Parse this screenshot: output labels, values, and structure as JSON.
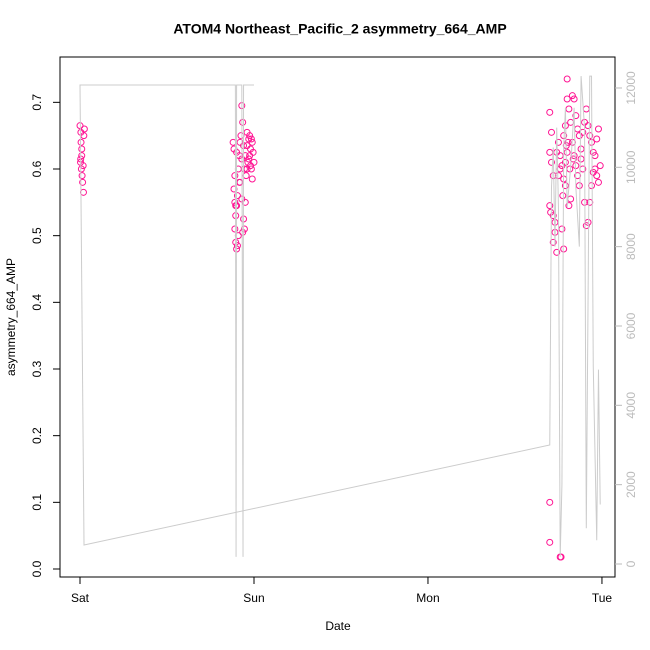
{
  "chart_data": {
    "type": "scatter",
    "title": "ATOM4 Northeast_Pacific_2 asymmetry_664_AMP",
    "x_label": "Date",
    "y_label": "asymmetry_664_AMP",
    "xlim": [
      -0.115,
      3.075
    ],
    "xticks": [
      {
        "value": 0,
        "label": "Sat"
      },
      {
        "value": 1,
        "label": "Sun"
      },
      {
        "value": 2,
        "label": "Mon"
      },
      {
        "value": 3,
        "label": "Tue"
      }
    ],
    "ylim": [
      -0.012,
      0.768
    ],
    "yticks": [
      {
        "value": 0,
        "label": "0.0"
      },
      0.1,
      0.2,
      0.3,
      0.4,
      0.5,
      0.6,
      0.7
    ],
    "y2lim": [
      -328,
      12781
    ],
    "y2ticks": [
      0,
      2000,
      4000,
      6000,
      8000,
      10000,
      12000
    ],
    "y2_color": "#bbbbbb",
    "series": [
      {
        "type": "scatter",
        "color": "#ff1493",
        "x": [
          0,
          0.005,
          0.01,
          0.003,
          0.008,
          0.012,
          0.015,
          0.02,
          0.018,
          0.025,
          0.022,
          0.006,
          0.01,
          0.004,
          0.88,
          0.885,
          0.89,
          0.885,
          0.89,
          0.895,
          0.89,
          0.895,
          0.9,
          0.905,
          0.91,
          0.9,
          0.905,
          0.91,
          0.915,
          0.92,
          0.925,
          0.93,
          0.935,
          0.92,
          0.93,
          0.94,
          0.945,
          0.95,
          0.955,
          0.96,
          0.965,
          0.97,
          0.975,
          0.98,
          0.985,
          0.99,
          0.995,
          1.0,
          0.96,
          0.97,
          0.98,
          0.99,
          0.94,
          0.95,
          0.96,
          0.93,
          0.915,
          0.945,
          0.975,
          0.985,
          0.9,
          0.935,
          0.895,
          2.7,
          2.7,
          2.76,
          2.765,
          2.7,
          2.71,
          2.7,
          2.71,
          2.72,
          2.7,
          2.705,
          2.72,
          2.73,
          2.72,
          2.74,
          2.73,
          2.75,
          2.76,
          2.74,
          2.75,
          2.76,
          2.77,
          2.78,
          2.79,
          2.8,
          2.8,
          2.81,
          2.79,
          2.78,
          2.82,
          2.83,
          2.84,
          2.85,
          2.83,
          2.84,
          2.85,
          2.86,
          2.87,
          2.82,
          2.81,
          2.78,
          2.77,
          2.88,
          2.89,
          2.9,
          2.91,
          2.92,
          2.93,
          2.94,
          2.95,
          2.96,
          2.97,
          2.98,
          2.99,
          2.98,
          2.97,
          2.96,
          2.95,
          2.94,
          2.93,
          2.92,
          2.91,
          2.9,
          2.89,
          2.88,
          2.87,
          2.86,
          2.8,
          2.79,
          2.815,
          2.775,
          2.795,
          2.805,
          2.835
        ],
        "values": [
          0.665,
          0.655,
          0.62,
          0.61,
          0.6,
          0.59,
          0.58,
          0.565,
          0.605,
          0.66,
          0.65,
          0.64,
          0.63,
          0.615,
          0.64,
          0.63,
          0.59,
          0.57,
          0.55,
          0.53,
          0.51,
          0.49,
          0.48,
          0.485,
          0.5,
          0.545,
          0.56,
          0.6,
          0.62,
          0.64,
          0.65,
          0.695,
          0.67,
          0.58,
          0.555,
          0.525,
          0.51,
          0.55,
          0.59,
          0.6,
          0.61,
          0.615,
          0.62,
          0.63,
          0.645,
          0.64,
          0.625,
          0.61,
          0.655,
          0.645,
          0.605,
          0.585,
          0.635,
          0.62,
          0.635,
          0.615,
          0.58,
          0.6,
          0.65,
          0.6,
          0.625,
          0.505,
          0.545,
          0.1,
          0.04,
          0.018,
          0.018,
          0.685,
          0.655,
          0.625,
          0.61,
          0.59,
          0.545,
          0.535,
          0.53,
          0.52,
          0.49,
          0.475,
          0.505,
          0.59,
          0.6,
          0.625,
          0.64,
          0.62,
          0.605,
          0.585,
          0.575,
          0.735,
          0.705,
          0.69,
          0.665,
          0.65,
          0.67,
          0.71,
          0.705,
          0.68,
          0.64,
          0.62,
          0.605,
          0.59,
          0.575,
          0.555,
          0.545,
          0.48,
          0.51,
          0.63,
          0.655,
          0.67,
          0.69,
          0.665,
          0.65,
          0.64,
          0.625,
          0.6,
          0.59,
          0.58,
          0.605,
          0.66,
          0.645,
          0.62,
          0.595,
          0.575,
          0.55,
          0.52,
          0.515,
          0.55,
          0.6,
          0.615,
          0.65,
          0.66,
          0.625,
          0.61,
          0.6,
          0.56,
          0.635,
          0.64,
          0.615
        ]
      },
      {
        "type": "line",
        "axis": "y2",
        "color": "#cccccc",
        "x": [
          1.0,
          0.94,
          0.937,
          0.93,
          0.9,
          0.897,
          0.893,
          0,
          0.023,
          2.7,
          2.71,
          2.72,
          2.73,
          2.74,
          2.75,
          2.76,
          2.77,
          2.78,
          2.79,
          2.8,
          2.82,
          2.84,
          2.85,
          2.87,
          2.88,
          2.9,
          2.91,
          2.93,
          2.94,
          2.95,
          2.97,
          2.98,
          2.99
        ],
        "values": [
          12075,
          12075,
          180,
          12075,
          12075,
          180,
          12075,
          12075,
          480,
          3000,
          9500,
          10500,
          8000,
          11000,
          9000,
          180,
          2000,
          10500,
          11500,
          9000,
          10000,
          11500,
          9500,
          8000,
          12300,
          11000,
          900,
          12300,
          12300,
          5000,
          600,
          4900,
          1500
        ]
      }
    ]
  }
}
